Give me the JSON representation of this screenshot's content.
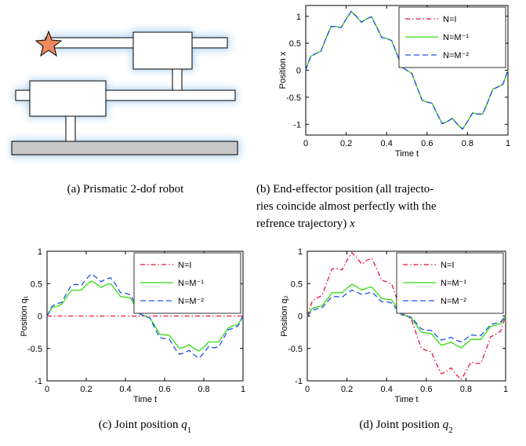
{
  "figure_a": {
    "caption": "(a) Prismatic 2-dof robot"
  },
  "chart_data": [
    {
      "type": "line",
      "caption": [
        "(b) End-effector position (all trajecto-",
        "ries coincide almost perfectly with the",
        "refrence trajectory)"
      ],
      "caption_var": {
        "symbol": "x"
      },
      "xlabel": "Time t",
      "ylabel": "Position x",
      "xlim": [
        0,
        1
      ],
      "ylim": [
        -1.2,
        1.2
      ],
      "xticks": [
        0,
        0.2,
        0.4,
        0.6,
        0.8,
        1
      ],
      "yticks": [
        -1,
        -0.5,
        0,
        0.5,
        1
      ],
      "legend": "upper right",
      "x": [
        0,
        0.025,
        0.05,
        0.075,
        0.1,
        0.125,
        0.15,
        0.175,
        0.2,
        0.225,
        0.25,
        0.275,
        0.3,
        0.325,
        0.35,
        0.375,
        0.4,
        0.425,
        0.45,
        0.475,
        0.5,
        0.525,
        0.55,
        0.575,
        0.6,
        0.625,
        0.65,
        0.675,
        0.7,
        0.725,
        0.75,
        0.775,
        0.8,
        0.825,
        0.85,
        0.875,
        0.9,
        0.925,
        0.95,
        0.975,
        1
      ],
      "series": [
        {
          "name": "N=I",
          "color": "#e8123c",
          "style": "dashdot",
          "values": [
            0,
            0.26,
            0.31,
            0.35,
            0.59,
            0.81,
            0.81,
            0.79,
            0.95,
            1.09,
            1,
            0.89,
            0.95,
            0.99,
            0.81,
            0.61,
            0.59,
            0.55,
            0.31,
            0.06,
            0,
            -0.06,
            -0.31,
            -0.55,
            -0.59,
            -0.61,
            -0.81,
            -0.99,
            -0.95,
            -0.89,
            -1,
            -1.09,
            -0.95,
            -0.79,
            -0.81,
            -0.81,
            -0.59,
            -0.35,
            -0.31,
            -0.26,
            0
          ]
        },
        {
          "name": "N=M⁻¹",
          "color": "#33dd11",
          "style": "solid",
          "values": [
            0,
            0.26,
            0.31,
            0.35,
            0.59,
            0.81,
            0.81,
            0.79,
            0.95,
            1.09,
            1,
            0.89,
            0.95,
            0.99,
            0.81,
            0.61,
            0.59,
            0.55,
            0.31,
            0.06,
            0,
            -0.06,
            -0.31,
            -0.55,
            -0.59,
            -0.61,
            -0.81,
            -0.99,
            -0.95,
            -0.89,
            -1,
            -1.09,
            -0.95,
            -0.79,
            -0.81,
            -0.81,
            -0.59,
            -0.35,
            -0.31,
            -0.26,
            0
          ]
        },
        {
          "name": "N=M⁻²",
          "color": "#1e50e6",
          "style": "dashed",
          "values": [
            0,
            0.26,
            0.31,
            0.35,
            0.59,
            0.81,
            0.81,
            0.79,
            0.95,
            1.09,
            1,
            0.89,
            0.95,
            0.99,
            0.81,
            0.61,
            0.59,
            0.55,
            0.31,
            0.06,
            0,
            -0.06,
            -0.31,
            -0.55,
            -0.59,
            -0.61,
            -0.81,
            -0.99,
            -0.95,
            -0.89,
            -1,
            -1.09,
            -0.95,
            -0.79,
            -0.81,
            -0.81,
            -0.59,
            -0.35,
            -0.31,
            -0.26,
            0
          ]
        }
      ]
    },
    {
      "type": "line",
      "caption": [
        "(c) Joint position"
      ],
      "caption_var": {
        "symbol": "q",
        "sub": "1"
      },
      "xlabel": "Time t",
      "ylabel": "Position q₁",
      "xlim": [
        0,
        1
      ],
      "ylim": [
        -1,
        1
      ],
      "xticks": [
        0,
        0.2,
        0.4,
        0.6,
        0.8,
        1
      ],
      "yticks": [
        -1,
        -0.5,
        0,
        0.5,
        1
      ],
      "legend": "upper right",
      "x": [
        0,
        0.025,
        0.05,
        0.075,
        0.1,
        0.125,
        0.15,
        0.175,
        0.2,
        0.225,
        0.25,
        0.275,
        0.3,
        0.325,
        0.35,
        0.375,
        0.4,
        0.425,
        0.45,
        0.475,
        0.5,
        0.525,
        0.55,
        0.575,
        0.6,
        0.625,
        0.65,
        0.675,
        0.7,
        0.725,
        0.75,
        0.775,
        0.8,
        0.825,
        0.85,
        0.875,
        0.9,
        0.925,
        0.95,
        0.975,
        1
      ],
      "series": [
        {
          "name": "N=I",
          "color": "#e8123c",
          "style": "dashdot",
          "values": [
            0,
            0,
            0,
            0,
            0,
            0,
            0,
            0,
            0,
            0,
            0,
            0,
            0,
            0,
            0,
            0,
            0,
            0,
            0,
            0,
            0,
            0,
            0,
            0,
            0,
            0,
            0,
            0,
            0,
            0,
            0,
            0,
            0,
            0,
            0,
            0,
            0,
            0,
            0,
            0,
            0
          ]
        },
        {
          "name": "N=M⁻¹",
          "color": "#33dd11",
          "style": "solid",
          "values": [
            0,
            0.13,
            0.15,
            0.18,
            0.29,
            0.4,
            0.4,
            0.4,
            0.48,
            0.54,
            0.5,
            0.44,
            0.48,
            0.5,
            0.4,
            0.3,
            0.29,
            0.28,
            0.15,
            0.03,
            0,
            -0.03,
            -0.15,
            -0.28,
            -0.29,
            -0.3,
            -0.4,
            -0.5,
            -0.48,
            -0.44,
            -0.5,
            -0.54,
            -0.48,
            -0.4,
            -0.4,
            -0.4,
            -0.29,
            -0.18,
            -0.15,
            -0.13,
            0
          ]
        },
        {
          "name": "N=M⁻²",
          "color": "#1e50e6",
          "style": "dashed",
          "values": [
            0,
            0.15,
            0.19,
            0.21,
            0.35,
            0.48,
            0.49,
            0.47,
            0.57,
            0.65,
            0.6,
            0.53,
            0.57,
            0.59,
            0.49,
            0.36,
            0.35,
            0.33,
            0.19,
            0.03,
            0,
            -0.03,
            -0.19,
            -0.33,
            -0.35,
            -0.36,
            -0.49,
            -0.59,
            -0.57,
            -0.53,
            -0.6,
            -0.65,
            -0.57,
            -0.47,
            -0.49,
            -0.48,
            -0.35,
            -0.21,
            -0.19,
            -0.15,
            0
          ]
        }
      ]
    },
    {
      "type": "line",
      "caption": [
        "(d) Joint position"
      ],
      "caption_var": {
        "symbol": "q",
        "sub": "2"
      },
      "xlabel": "Time t",
      "ylabel": "Position q₂",
      "xlim": [
        0,
        1
      ],
      "ylim": [
        -1,
        1
      ],
      "xticks": [
        0,
        0.2,
        0.4,
        0.6,
        0.8,
        1
      ],
      "yticks": [
        -1,
        -0.5,
        0,
        0.5,
        1
      ],
      "legend": "upper right",
      "x": [
        0,
        0.025,
        0.05,
        0.075,
        0.1,
        0.125,
        0.15,
        0.175,
        0.2,
        0.225,
        0.25,
        0.275,
        0.3,
        0.325,
        0.35,
        0.375,
        0.4,
        0.425,
        0.45,
        0.475,
        0.5,
        0.525,
        0.55,
        0.575,
        0.6,
        0.625,
        0.65,
        0.675,
        0.7,
        0.725,
        0.75,
        0.775,
        0.8,
        0.825,
        0.85,
        0.875,
        0.9,
        0.925,
        0.95,
        0.975,
        1
      ],
      "series": [
        {
          "name": "N=I",
          "color": "#e8123c",
          "style": "dashdot",
          "values": [
            0,
            0.23,
            0.28,
            0.32,
            0.53,
            0.73,
            0.73,
            0.71,
            0.86,
            0.98,
            0.9,
            0.8,
            0.86,
            0.89,
            0.73,
            0.55,
            0.53,
            0.5,
            0.28,
            0.05,
            0,
            -0.05,
            -0.28,
            -0.5,
            -0.53,
            -0.55,
            -0.73,
            -0.89,
            -0.86,
            -0.8,
            -0.9,
            -0.98,
            -0.86,
            -0.71,
            -0.73,
            -0.73,
            -0.53,
            -0.32,
            -0.28,
            -0.23,
            0
          ]
        },
        {
          "name": "N=M⁻¹",
          "color": "#33dd11",
          "style": "solid",
          "values": [
            0,
            0.12,
            0.14,
            0.16,
            0.26,
            0.36,
            0.36,
            0.36,
            0.43,
            0.49,
            0.45,
            0.4,
            0.43,
            0.45,
            0.36,
            0.27,
            0.26,
            0.25,
            0.14,
            0.03,
            0,
            -0.03,
            -0.14,
            -0.25,
            -0.26,
            -0.27,
            -0.36,
            -0.45,
            -0.43,
            -0.4,
            -0.45,
            -0.49,
            -0.43,
            -0.36,
            -0.36,
            -0.36,
            -0.26,
            -0.16,
            -0.14,
            -0.12,
            0
          ]
        },
        {
          "name": "N=M⁻²",
          "color": "#1e50e6",
          "style": "dashed",
          "values": [
            0,
            0.09,
            0.11,
            0.13,
            0.22,
            0.3,
            0.3,
            0.29,
            0.35,
            0.4,
            0.37,
            0.33,
            0.35,
            0.37,
            0.3,
            0.22,
            0.22,
            0.2,
            0.11,
            0.02,
            0,
            -0.02,
            -0.11,
            -0.2,
            -0.22,
            -0.22,
            -0.3,
            -0.37,
            -0.35,
            -0.33,
            -0.37,
            -0.4,
            -0.35,
            -0.29,
            -0.3,
            -0.3,
            -0.22,
            -0.13,
            -0.11,
            -0.09,
            0
          ]
        }
      ]
    }
  ]
}
